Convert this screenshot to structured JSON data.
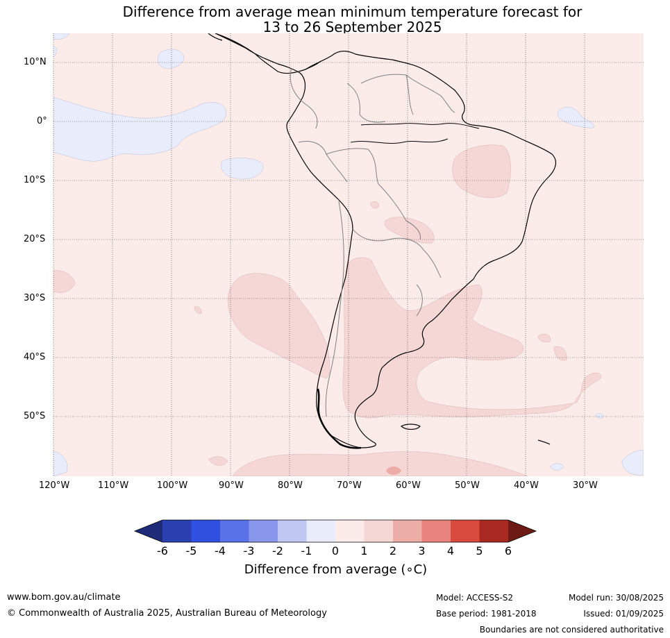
{
  "title": {
    "line1": "Difference from average mean minimum temperature forecast for",
    "line2": "13 to 26 September 2025"
  },
  "map": {
    "region": "South America",
    "lat_labels": [
      "10°N",
      "0°",
      "10°S",
      "20°S",
      "30°S",
      "40°S",
      "50°S"
    ],
    "lon_labels": [
      "120°W",
      "110°W",
      "100°W",
      "90°W",
      "80°W",
      "70°W",
      "60°W",
      "50°W",
      "40°W",
      "30°W"
    ],
    "colors": {
      "ocean_0_1": "#fbecea",
      "land_0_1": "#fbecea",
      "anomaly_1_2": "#f5d7d5",
      "anomaly_2_3": "#ecaca8",
      "anomaly_-1_0": "#e9ecfb",
      "coastline": "#000000",
      "borders": "#808080",
      "gridlines": "#333333"
    }
  },
  "colorbar": {
    "ticks": [
      "-6",
      "-5",
      "-4",
      "-3",
      "-2",
      "-1",
      "0",
      "1",
      "2",
      "3",
      "4",
      "5",
      "6"
    ],
    "colors": [
      "#1f2a78",
      "#2a3fb0",
      "#3050e0",
      "#5a72e8",
      "#8896ec",
      "#c0c7f2",
      "#e9ecfb",
      "#fbecea",
      "#f5d7d5",
      "#ecaca8",
      "#e8837d",
      "#d94a3e",
      "#a8291f",
      "#6e1a14"
    ],
    "label": "Difference from average (∘C)"
  },
  "footer": {
    "website": "www.bom.gov.au/climate",
    "copyright": "© Commonwealth of Australia 2025, Australian Bureau of Meteorology",
    "model": "Model: ACCESS-S2",
    "base_period": "Base period: 1981-2018",
    "model_run": "Model run: 30/08/2025",
    "issued": "Issued: 01/09/2025",
    "disclaimer": "Boundaries are not considered authoritative"
  }
}
